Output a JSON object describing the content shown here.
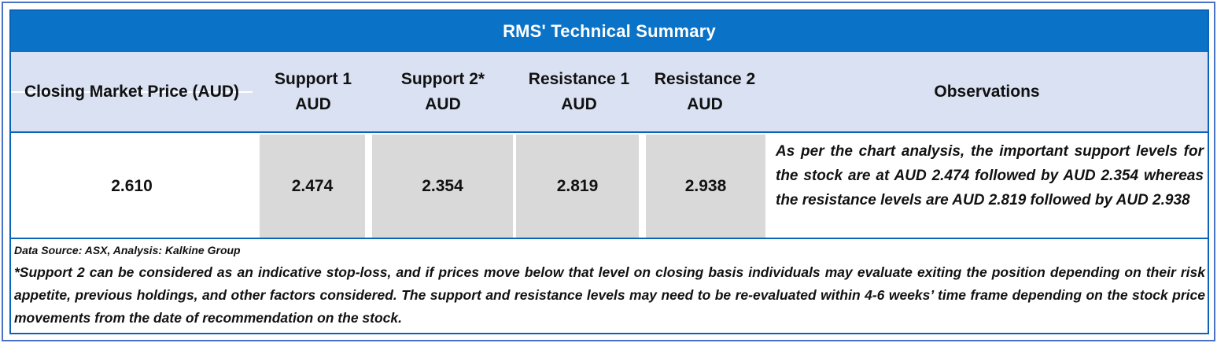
{
  "title": "RMS' Technical Summary",
  "headers": {
    "closing": "Closing Market Price (AUD)",
    "support1": [
      "Support 1",
      "AUD"
    ],
    "support2": [
      "Support 2*",
      "AUD"
    ],
    "resistance1": [
      "Resistance 1",
      "AUD"
    ],
    "resistance2": [
      "Resistance 2",
      "AUD"
    ],
    "observations": "Observations"
  },
  "values": {
    "closing": "2.610",
    "support1": "2.474",
    "support2": "2.354",
    "resistance1": "2.819",
    "resistance2": "2.938"
  },
  "observation_text": "As per the chart analysis, the important support levels for the stock are at AUD 2.474 followed by AUD 2.354 whereas the resistance levels are AUD 2.819 followed by AUD 2.938",
  "footer": {
    "source": "Data Source: ASX, Analysis: Kalkine Group",
    "note": "*Support 2 can be considered as an indicative stop-loss, and if prices move below that level on closing basis individuals may evaluate exiting the position depending on their risk appetite, previous holdings, and other factors considered. The support and resistance levels may need to be re-evaluated within 4-6 weeks’ time frame depending on the stock price movements from the date of recommendation on the stock."
  },
  "colors": {
    "title_bar": "#0b73c7",
    "header_bg": "#d9e1f2",
    "shaded_cell": "#d9d9d9",
    "border": "#0b63b8"
  }
}
